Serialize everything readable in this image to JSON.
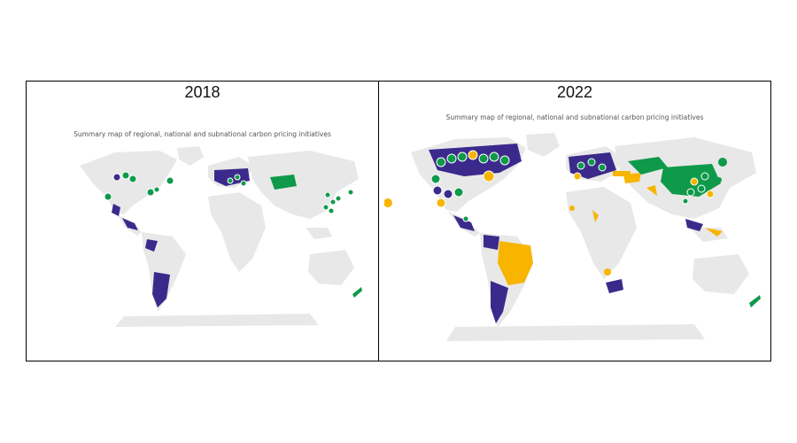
{
  "panels": [
    {
      "year": "2018",
      "subtitle": "Summary map of regional, national and subnational carbon pricing initiatives"
    },
    {
      "year": "2022",
      "subtitle": "Summary map of regional, national and subnational carbon pricing initiatives"
    }
  ],
  "colors": {
    "land": "#e8e8e8",
    "ets_implemented": "#3b2a8c",
    "tax_implemented": "#0e9a4a",
    "under_consideration": "#f7b500",
    "outline": "#ffffff"
  }
}
